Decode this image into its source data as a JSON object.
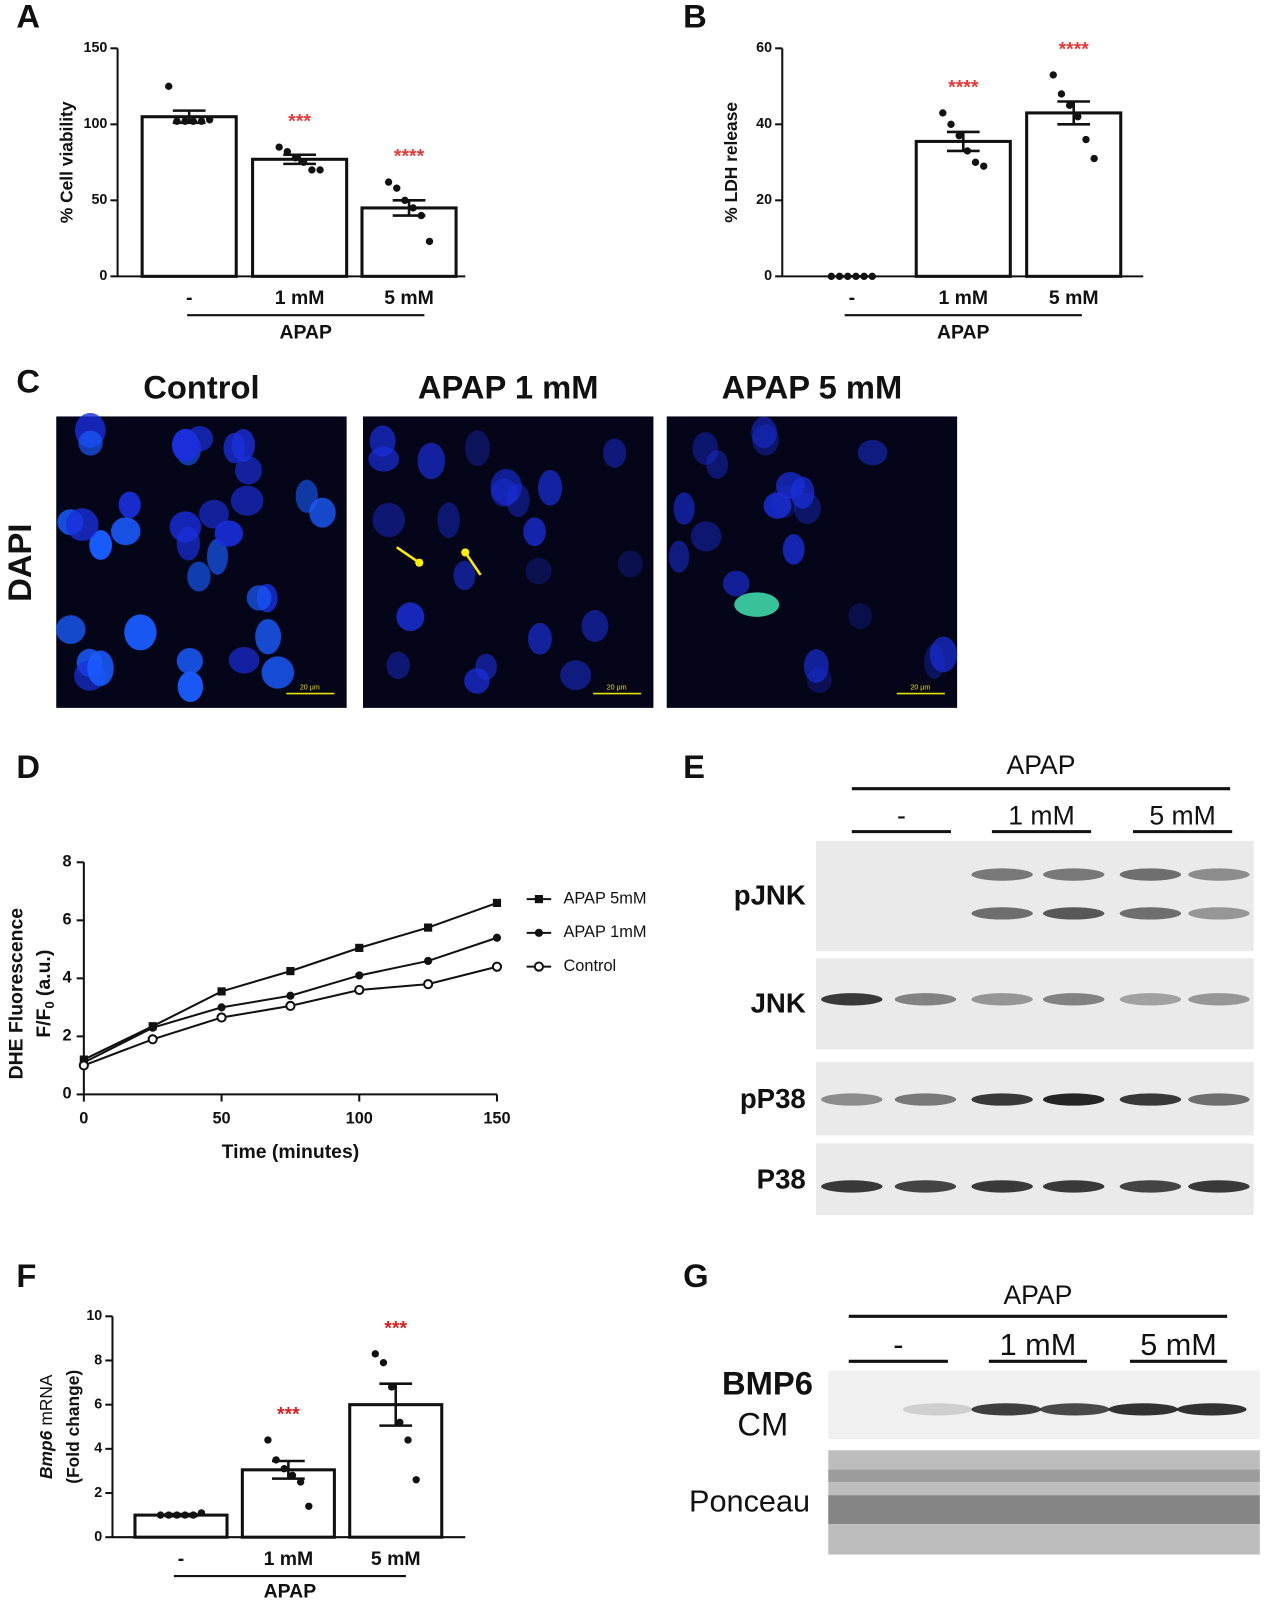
{
  "chart_data": [
    {
      "type": "bar",
      "panel": "A",
      "y_label": "% Cell viability",
      "categories": [
        "-",
        "1 mM",
        "5 mM"
      ],
      "group_label": "APAP",
      "values": [
        105,
        77,
        45
      ],
      "errors": [
        4,
        3,
        5
      ],
      "points": [
        [
          125,
          102,
          102,
          102,
          102,
          103
        ],
        [
          85,
          82,
          78,
          75,
          70,
          70
        ],
        [
          62,
          58,
          50,
          45,
          40,
          23
        ]
      ],
      "annotations": [
        null,
        "***",
        "****"
      ],
      "annotation_color": "#e03a3a",
      "ylim": [
        0,
        150
      ],
      "yticks": [
        0,
        50,
        100,
        150
      ]
    },
    {
      "type": "bar",
      "panel": "B",
      "y_label": "% LDH release",
      "categories": [
        "-",
        "1 mM",
        "5 mM"
      ],
      "group_label": "APAP",
      "values": [
        0,
        35.5,
        43
      ],
      "errors": [
        0,
        2.5,
        3
      ],
      "points": [
        [
          0,
          0,
          0,
          0,
          0,
          0
        ],
        [
          43,
          40,
          37,
          33,
          30,
          29
        ],
        [
          53,
          48,
          45,
          42,
          36,
          31
        ]
      ],
      "annotations": [
        null,
        "****",
        "****"
      ],
      "annotation_color": "#e03a3a",
      "ylim": [
        0,
        60
      ],
      "yticks": [
        0,
        20,
        40,
        60
      ]
    },
    {
      "type": "line",
      "panel": "D",
      "y_label": "DHE Fluorescence",
      "y_label_2": "F/F",
      "y_label_2_sub": "0",
      "y_label_2_rest": "(a.u.)",
      "x_label": "Time (minutes)",
      "x": [
        0,
        25,
        50,
        75,
        100,
        125,
        150
      ],
      "series": [
        {
          "name": "APAP 5mM",
          "marker": "square",
          "color": "#111111",
          "values": [
            1.2,
            2.35,
            3.55,
            4.25,
            5.05,
            5.75,
            6.6
          ]
        },
        {
          "name": "APAP 1mM",
          "marker": "circle",
          "color": "#111111",
          "values": [
            1.1,
            2.3,
            3.0,
            3.4,
            4.1,
            4.6,
            5.4
          ]
        },
        {
          "name": "Control",
          "marker": "open-circle",
          "color": "#111111",
          "values": [
            1.0,
            1.9,
            2.65,
            3.05,
            3.6,
            3.8,
            4.4
          ]
        }
      ],
      "xlim": [
        0,
        150
      ],
      "xticks": [
        0,
        50,
        100,
        150
      ],
      "ylim": [
        0,
        8
      ],
      "yticks": [
        0,
        2,
        4,
        6,
        8
      ]
    },
    {
      "type": "bar",
      "panel": "F",
      "y_label_italic": "Bmp6",
      "y_label": "mRNA",
      "y_label_2": "(Fold change)",
      "categories": [
        "-",
        "1 mM",
        "5 mM"
      ],
      "group_label": "APAP",
      "values": [
        1.0,
        3.05,
        6.0
      ],
      "errors": [
        0.05,
        0.4,
        0.95
      ],
      "points": [
        [
          1,
          1,
          1,
          1,
          1,
          1.1
        ],
        [
          4.4,
          3.5,
          3.1,
          2.8,
          2.5,
          1.4
        ],
        [
          8.3,
          7.9,
          6.8,
          5.2,
          4.4,
          2.6
        ]
      ],
      "annotations": [
        null,
        "***",
        "***"
      ],
      "annotation_color": "#d42020",
      "ylim": [
        0,
        10
      ],
      "yticks": [
        0,
        2,
        4,
        6,
        8,
        10
      ]
    }
  ],
  "panel_c": {
    "letter": "C",
    "titles": [
      "Control",
      "APAP 1 mM",
      "APAP 5 mM"
    ],
    "row_label": "DAPI",
    "scale_bar": "20 µm"
  },
  "panel_e": {
    "letter": "E",
    "treatment": "APAP",
    "groups": [
      "-",
      "1 mM",
      "5 mM"
    ],
    "rows": [
      "pJNK",
      "JNK",
      "pP38",
      "P38"
    ]
  },
  "panel_g": {
    "letter": "G",
    "treatment": "APAP",
    "groups": [
      "-",
      "1 mM",
      "5 mM"
    ],
    "row_title": "BMP6",
    "row_subtitle": "CM",
    "loading": "Ponceau"
  }
}
